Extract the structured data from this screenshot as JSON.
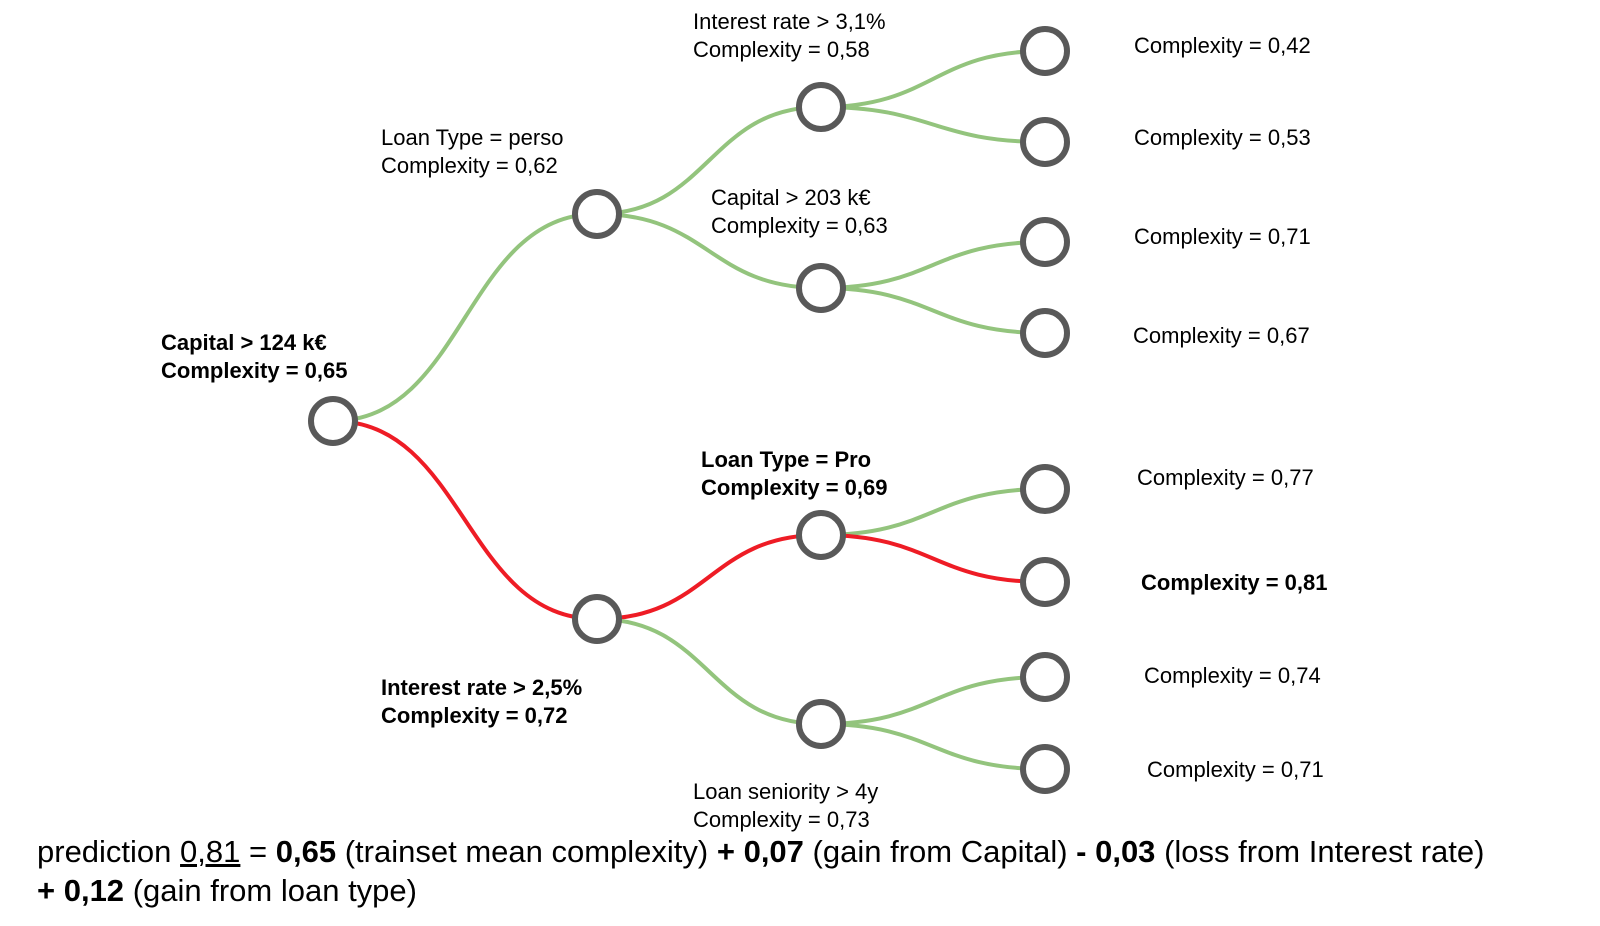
{
  "colors": {
    "normal_edge": "#93c47d",
    "path_edge": "#ee1c25",
    "node_stroke": "#595959",
    "node_fill": "#ffffff"
  },
  "labels": {
    "root": {
      "line1": "Capital > 124 k€",
      "line2": "Complexity = 0,65"
    },
    "n_perso": {
      "line1": "Loan Type = perso",
      "line2": "Complexity = 0,62"
    },
    "n_rate31": {
      "line1": "Interest rate > 3,1%",
      "line2": "Complexity = 0,58"
    },
    "n_cap203": {
      "line1": "Capital > 203 k€",
      "line2": "Complexity = 0,63"
    },
    "n_rate25": {
      "line1": "Interest rate > 2,5%",
      "line2": "Complexity = 0,72"
    },
    "n_pro": {
      "line1": "Loan Type = Pro",
      "line2": "Complexity = 0,69"
    },
    "n_senior": {
      "line1": "Loan seniority > 4y",
      "line2": "Complexity = 0,73"
    }
  },
  "leaves": [
    "Complexity = 0,42",
    "Complexity = 0,53",
    "Complexity = 0,71",
    "Complexity = 0,67",
    "Complexity = 0,77",
    "Complexity = 0,81",
    "Complexity = 0,74",
    "Complexity = 0,71"
  ],
  "formula": {
    "w1": "prediction",
    "prediction": "0,81",
    "w2": "=",
    "base": "0,65",
    "base_note": "(trainset mean complexity)",
    "c1": "+ 0,07",
    "c1_note": "(gain from Capital)",
    "c2": "- 0,03",
    "c2_note": "(loss from Interest rate)",
    "c3": "+ 0,12",
    "c3_note": "(gain from loan type)"
  }
}
